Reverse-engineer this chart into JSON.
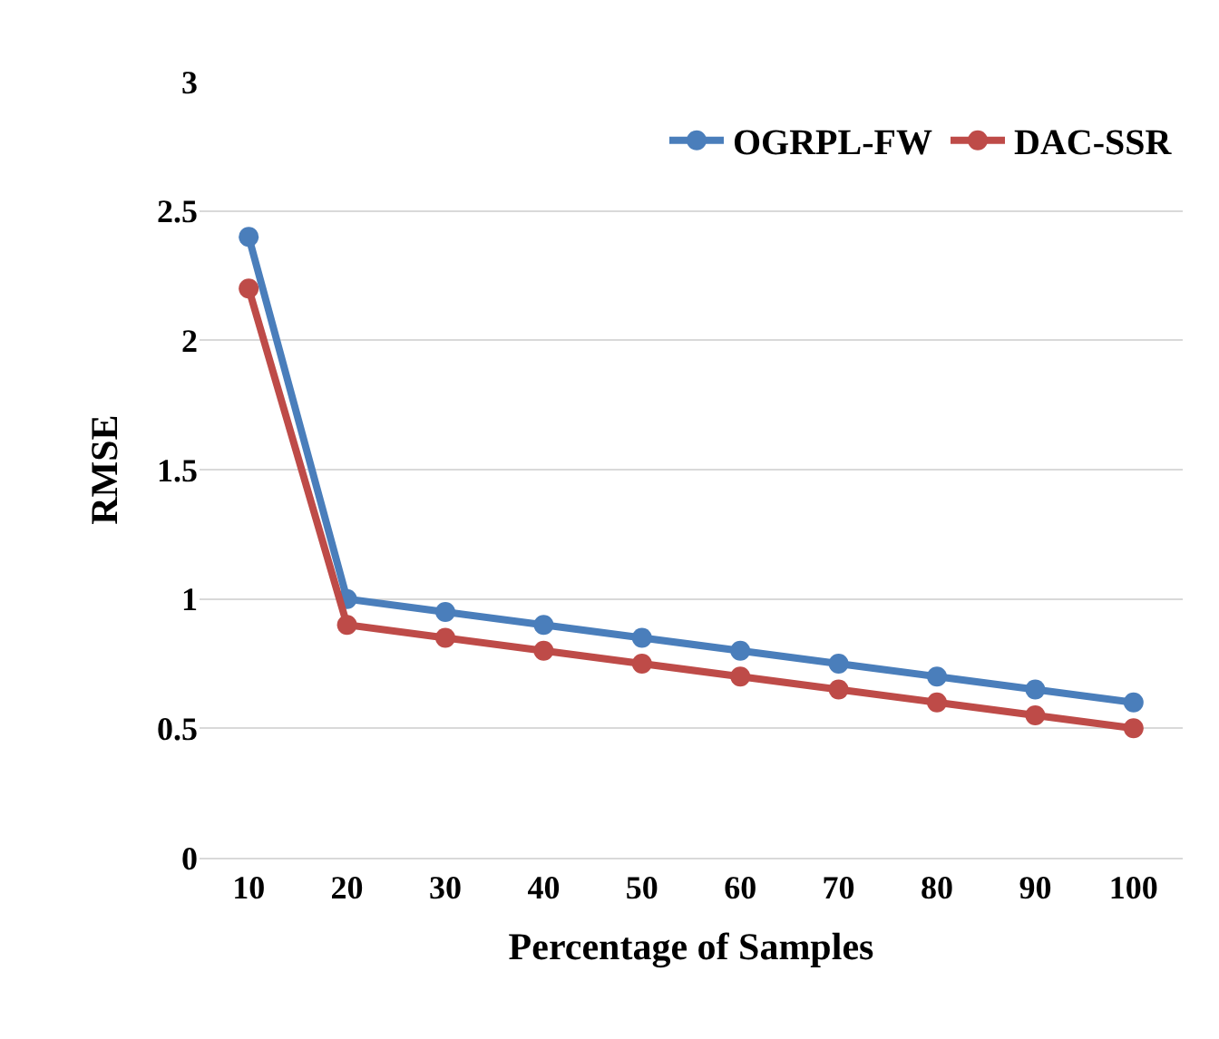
{
  "chart_data": {
    "type": "line",
    "xlabel": "Percentage of Samples",
    "ylabel": "RMSE",
    "categories": [
      "10",
      "20",
      "30",
      "40",
      "50",
      "60",
      "70",
      "80",
      "90",
      "100"
    ],
    "series": [
      {
        "name": "OGRPL-FW",
        "color": "#4a7ebb",
        "values": [
          2.4,
          1.0,
          0.95,
          0.9,
          0.85,
          0.8,
          0.75,
          0.7,
          0.65,
          0.6
        ]
      },
      {
        "name": "DAC-SSR",
        "color": "#be4b48",
        "values": [
          2.2,
          0.9,
          0.85,
          0.8,
          0.75,
          0.7,
          0.65,
          0.6,
          0.55,
          0.5
        ]
      }
    ],
    "ylim": [
      0,
      3
    ],
    "yticks": [
      0,
      0.5,
      1,
      1.5,
      2,
      2.5,
      3
    ],
    "grid": "y",
    "legend": "top right",
    "marker": "circle",
    "line_style": "solid"
  }
}
